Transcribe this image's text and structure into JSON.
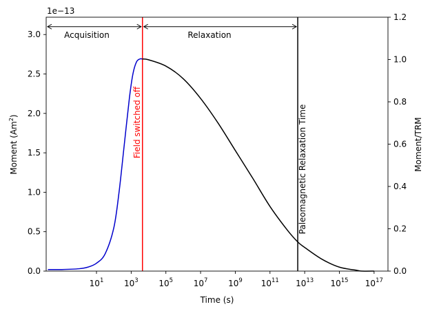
{
  "chart_data": {
    "type": "line",
    "xlabel": "Time (s)",
    "ylabel_left": "Moment (Am",
    "ylabel_left_sup": "2",
    "ylabel_left_close": ")",
    "ylabel_right": "Moment/TRM",
    "offset_text": "1e−13",
    "x_scale": "log",
    "x_lim_log10": [
      -1.9,
      17.8
    ],
    "x_ticks": [
      {
        "base": "10",
        "exp": "1",
        "log10": 1
      },
      {
        "base": "10",
        "exp": "3",
        "log10": 3
      },
      {
        "base": "10",
        "exp": "5",
        "log10": 5
      },
      {
        "base": "10",
        "exp": "7",
        "log10": 7
      },
      {
        "base": "10",
        "exp": "9",
        "log10": 9
      },
      {
        "base": "10",
        "exp": "11",
        "log10": 11
      },
      {
        "base": "10",
        "exp": "13",
        "log10": 13
      },
      {
        "base": "10",
        "exp": "15",
        "log10": 15
      },
      {
        "base": "10",
        "exp": "17",
        "log10": 17
      }
    ],
    "y_left_lim": [
      0,
      3.22
    ],
    "y_left_ticks": [
      "0.0",
      "0.5",
      "1.0",
      "1.5",
      "2.0",
      "2.5",
      "3.0"
    ],
    "y_right_lim": [
      0,
      1.2
    ],
    "y_right_ticks": [
      "0.0",
      "0.2",
      "0.4",
      "0.6",
      "0.8",
      "1.0",
      "1.2"
    ],
    "grid": false,
    "series": [
      {
        "color": "#0000cc",
        "x_log10": [
          -1.8,
          -1,
          0,
          0.5,
          1,
          1.5,
          2,
          2.3,
          2.6,
          2.9,
          3.1,
          3.3,
          3.5,
          3.65
        ],
        "y": [
          0.02,
          0.02,
          0.03,
          0.05,
          0.1,
          0.22,
          0.55,
          1.0,
          1.6,
          2.2,
          2.5,
          2.65,
          2.69,
          2.69
        ]
      },
      {
        "color": "#000000",
        "x_log10": [
          3.65,
          4,
          5,
          6,
          7,
          8,
          9,
          10,
          11,
          12,
          12.6,
          13,
          14,
          15,
          16,
          16.3,
          17
        ],
        "y": [
          2.69,
          2.68,
          2.6,
          2.44,
          2.19,
          1.88,
          1.53,
          1.18,
          0.82,
          0.52,
          0.37,
          0.3,
          0.15,
          0.05,
          0.01,
          0.0,
          0.0
        ]
      }
    ],
    "vlines": [
      {
        "name": "field-off-line",
        "x_log10": 3.65,
        "color": "#ff0000"
      },
      {
        "name": "paleomagnetic-relaxation-line",
        "x_log10": 12.6,
        "color": "#000000"
      }
    ],
    "annotations": {
      "acquisition": "Acquisition",
      "relaxation": "Relaxation",
      "field_off": "Field switched off",
      "paleo": "Paleomagnetic Relaxation Time"
    },
    "arrow_y": 3.1
  }
}
